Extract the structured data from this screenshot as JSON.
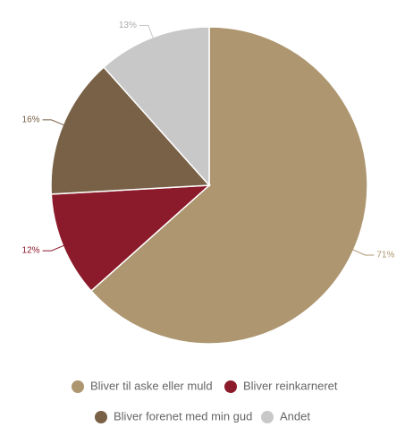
{
  "chart_data": {
    "type": "pie",
    "categories": [
      "Bliver til aske eller muld",
      "Bliver reinkarneret",
      "Bliver forenet med min gud",
      "Andet"
    ],
    "values": [
      71,
      12,
      16,
      13
    ],
    "value_labels": [
      "71%",
      "12%",
      "16%",
      "13%"
    ],
    "colors": [
      "#ad9670",
      "#8b1a2a",
      "#786146",
      "#c8c8c8"
    ]
  }
}
